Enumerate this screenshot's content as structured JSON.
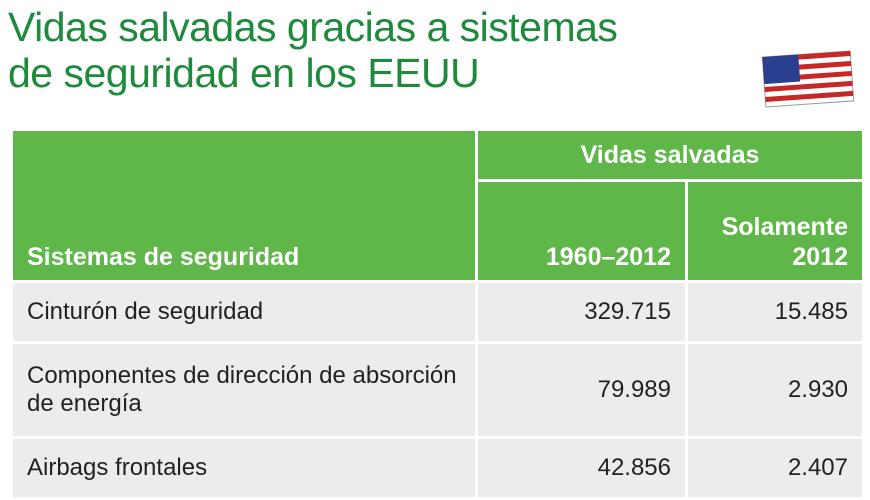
{
  "header": {
    "title_lines": [
      "Vidas salvadas gracias a sistemas",
      "de seguridad en los EEUU"
    ]
  },
  "table": {
    "group_header": "Vidas salvadas",
    "columns": [
      "Sistemas de seguridad",
      "1960–2012",
      [
        "Solamente",
        "2012"
      ]
    ],
    "rows": [
      [
        "Cinturón de seguridad",
        "329.715",
        "15.485"
      ],
      [
        "Componentes de dirección de absorción de energía",
        "79.989",
        "2.930"
      ],
      [
        "Airbags frontales",
        "42.856",
        "2.407"
      ]
    ]
  }
}
